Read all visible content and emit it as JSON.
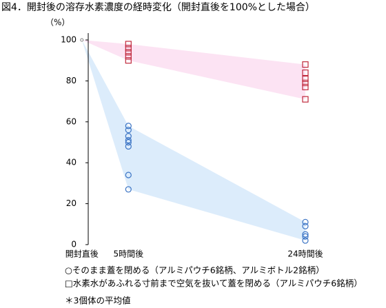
{
  "chart_data": {
    "type": "scatter",
    "title": "図4．開封後の溶存水素濃度の経時変化（開封直後を100%とした場合）",
    "y_label": "（%）",
    "xlim": [
      -0.5,
      26
    ],
    "ylim": [
      0,
      100
    ],
    "xticks": [
      {
        "value": 0,
        "label": "開封直後"
      },
      {
        "value": 5,
        "label": "5時間後"
      },
      {
        "value": 24,
        "label": "24時間後"
      }
    ],
    "yticks": [
      0,
      20,
      40,
      60,
      80,
      100
    ],
    "start": {
      "x": 0,
      "value": 100,
      "color": "#808080"
    },
    "series": [
      {
        "name": "○そのまま蓋を閉める（アルミパウチ6銘柄、アルミボトル2銘柄）",
        "marker": "circle",
        "color": "#3a73c4",
        "band_color": "#dcecfb",
        "x": [
          5,
          5,
          5,
          5,
          5,
          5,
          5,
          5,
          24,
          24,
          24,
          24,
          24
        ],
        "values": [
          58,
          56,
          53,
          51,
          50,
          48,
          34,
          27,
          11,
          9,
          5,
          4,
          2
        ]
      },
      {
        "name": "□水素水があふれる寸前まで空気を抜いて蓋を閉める（アルミパウチ6銘柄）",
        "marker": "square",
        "color": "#c0283c",
        "band_color": "#fce3f3",
        "x": [
          5,
          5,
          5,
          5,
          5,
          24,
          24,
          24,
          24,
          24,
          24
        ],
        "values": [
          98,
          96,
          94,
          92,
          90,
          88,
          84,
          81,
          79,
          77,
          71
        ]
      }
    ],
    "note": "＊3個体の平均値"
  }
}
